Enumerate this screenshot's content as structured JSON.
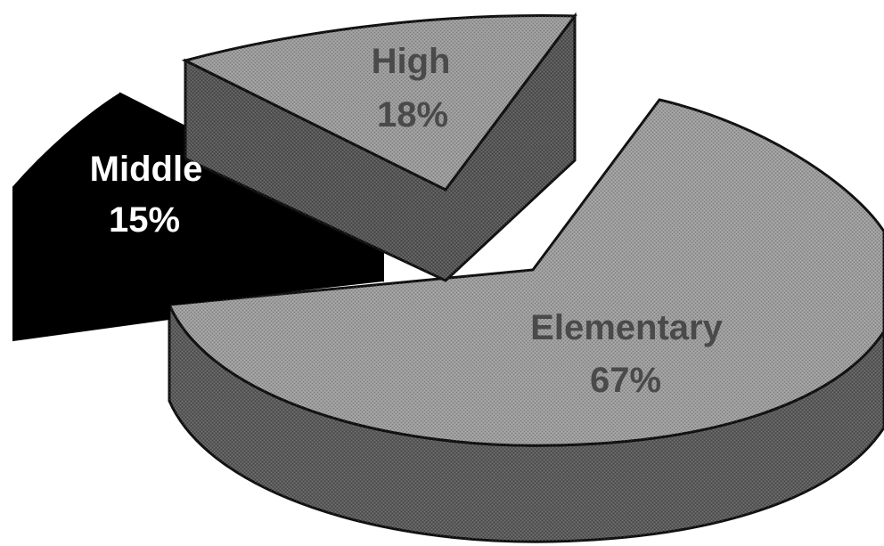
{
  "chart_data": {
    "type": "pie",
    "style": "3d-exploded",
    "title": "",
    "unit": "%",
    "slices": [
      {
        "name": "Elementary",
        "value": 67,
        "label": "Elementary",
        "pct_label": "67%",
        "color": "#9c9c9c",
        "side_color": "#5a5a5a",
        "label_color": "#4a4a4a"
      },
      {
        "name": "Middle",
        "value": 15,
        "label": "Middle",
        "pct_label": "15%",
        "color": "#000000",
        "side_color": "#000000",
        "label_color": "#ffffff"
      },
      {
        "name": "High",
        "value": 18,
        "label": "High",
        "pct_label": "18%",
        "color": "#9a9a9a",
        "side_color": "#555555",
        "label_color": "#4a4a4a"
      }
    ]
  }
}
